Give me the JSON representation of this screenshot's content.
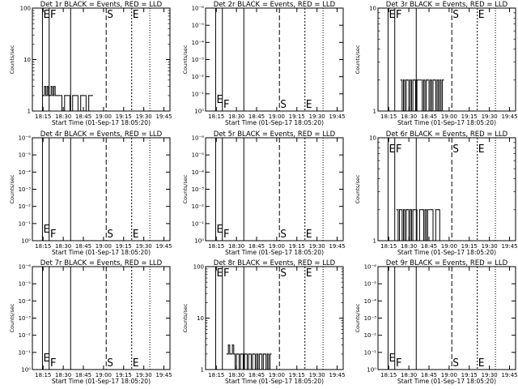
{
  "chart_data": [
    {
      "title": "Det 1r BLACK = Events, RED = LLD",
      "type": "line",
      "ylabel": "Counts/sec",
      "xlabel": "Start Time (01-Sep-17 18:05:20)",
      "x_ticks": [
        "18:15",
        "18:30",
        "18:45",
        "19:00",
        "19:15",
        "19:30",
        "19:45"
      ],
      "y_scale": "log",
      "y_ticks": [
        "1",
        "10",
        "100"
      ],
      "ylim": [
        1,
        100
      ],
      "markers": [
        "E",
        "F",
        "S",
        "E"
      ],
      "series": [
        {
          "color": "#000000",
          "x": [
            "18:15:00",
            "18:16:00",
            "18:17:00",
            "18:18:00",
            "18:19:00",
            "18:20:00",
            "18:21:00",
            "18:22:00",
            "18:23:00",
            "18:24:00",
            "18:25:00",
            "18:27:00",
            "18:29:00",
            "18:31:00",
            "18:33:00",
            "18:35:00",
            "18:37:00",
            "18:39:00",
            "18:41:00",
            "18:43:00",
            "18:45:00",
            "18:47:00",
            "18:49:00",
            "18:51:00"
          ],
          "values": [
            2,
            3,
            2,
            3,
            2,
            2,
            3,
            2,
            3,
            2,
            2,
            2,
            1,
            2,
            2,
            1,
            2,
            2,
            1,
            2,
            2,
            1,
            2,
            2
          ]
        }
      ]
    },
    {
      "title": "Det 2r BLACK = Events, RED = LLD",
      "type": "line",
      "ylabel": "Counts/sec",
      "xlabel": "Start Time (01-Sep-17 18:05:20)",
      "x_ticks": [
        "18:15",
        "18:30",
        "18:45",
        "19:00",
        "19:15",
        "19:30",
        "19:45"
      ],
      "y_scale": "log",
      "y_ticks": [
        "10⁰",
        "10⁻¹",
        "10⁻²",
        "10⁻³",
        "10⁻⁴",
        "10⁻⁵",
        "10⁻⁶"
      ],
      "markers": [
        "E",
        "F",
        "S",
        "E"
      ],
      "series": []
    },
    {
      "title": "Det 3r BLACK = Events, RED = LLD",
      "type": "line",
      "ylabel": "Counts/sec",
      "xlabel": "Start Time (01-Sep-17 18:05:20)",
      "x_ticks": [
        "18:15",
        "18:30",
        "18:45",
        "19:00",
        "19:15",
        "19:30",
        "19:45"
      ],
      "y_scale": "log",
      "y_ticks": [
        "1",
        "10"
      ],
      "ylim": [
        1,
        10
      ],
      "markers": [
        "E",
        "F",
        "S",
        "E"
      ],
      "series": [
        {
          "color": "#000000",
          "x": [
            "18:24:00",
            "18:25:00",
            "18:26:00",
            "18:27:00",
            "18:28:00",
            "18:29:00",
            "18:30:00",
            "18:31:00",
            "18:32:00",
            "18:33:00",
            "18:34:00",
            "18:35:00",
            "18:36:00",
            "18:40:00",
            "18:41:00",
            "18:42:00",
            "18:43:00",
            "18:44:00",
            "18:45:00",
            "18:46:00",
            "18:47:00",
            "18:48:00",
            "18:49:00",
            "18:50:00",
            "18:51:00",
            "18:52:00",
            "18:53:00",
            "18:54:00",
            "18:55:00"
          ],
          "values": [
            2,
            1,
            2,
            1,
            2,
            2,
            1,
            2,
            1,
            2,
            2,
            1,
            2,
            1,
            2,
            1,
            2,
            2,
            1,
            2,
            1,
            2,
            2,
            1,
            2,
            1,
            2,
            1,
            2
          ]
        }
      ]
    },
    {
      "title": "Det 4r BLACK = Events, RED = LLD",
      "type": "line",
      "ylabel": "Counts/sec",
      "xlabel": "Start Time (01-Sep-17 18:05:20)",
      "x_ticks": [
        "18:15",
        "18:30",
        "18:45",
        "19:00",
        "19:15",
        "19:30",
        "19:45"
      ],
      "y_scale": "log",
      "y_ticks": [
        "10⁰",
        "10⁻¹",
        "10⁻²",
        "10⁻³",
        "10⁻⁴",
        "10⁻⁵",
        "10⁻⁶"
      ],
      "markers": [
        "E",
        "F",
        "S",
        "E"
      ],
      "series": []
    },
    {
      "title": "Det 5r BLACK = Events, RED = LLD",
      "type": "line",
      "ylabel": "Counts/sec",
      "xlabel": "Start Time (01-Sep-17 18:05:20)",
      "x_ticks": [
        "18:15",
        "18:30",
        "18:45",
        "19:00",
        "19:15",
        "19:30",
        "19:45"
      ],
      "y_scale": "log",
      "y_ticks": [
        "10⁰",
        "10⁻¹",
        "10⁻²",
        "10⁻³",
        "10⁻⁴",
        "10⁻⁵",
        "10⁻⁶"
      ],
      "markers": [
        "E",
        "F",
        "S",
        "E"
      ],
      "series": []
    },
    {
      "title": "Det 6r BLACK = Events, RED = LLD",
      "type": "line",
      "ylabel": "Counts/sec",
      "xlabel": "Start Time (01-Sep-17 18:05:20)",
      "x_ticks": [
        "18:15",
        "18:30",
        "18:45",
        "19:00",
        "19:15",
        "19:30",
        "19:45"
      ],
      "y_scale": "log",
      "y_ticks": [
        "1",
        "10"
      ],
      "ylim": [
        1,
        10
      ],
      "markers": [
        "E",
        "F",
        "S",
        "E"
      ],
      "series": [
        {
          "color": "#000000",
          "x": [
            "18:21:00",
            "18:22:00",
            "18:23:00",
            "18:24:00",
            "18:25:00",
            "18:26:00",
            "18:27:00",
            "18:28:00",
            "18:29:00",
            "18:30:00",
            "18:31:00",
            "18:32:00",
            "18:33:00",
            "18:34:00",
            "18:36:00",
            "18:38:00",
            "18:40:00",
            "18:41:00",
            "18:42:00",
            "18:43:00",
            "18:44:00",
            "18:47:00",
            "18:48:00",
            "18:50:00",
            "18:52:00",
            "18:53:00"
          ],
          "values": [
            2,
            1,
            2,
            2,
            1,
            2,
            1,
            2,
            2,
            1,
            2,
            1,
            2,
            2,
            1,
            2,
            2,
            1,
            2,
            1,
            2,
            2,
            1,
            2,
            2,
            1
          ]
        }
      ]
    },
    {
      "title": "Det 7r BLACK = Events, RED = LLD",
      "type": "line",
      "ylabel": "Counts/sec",
      "xlabel": "Start Time (01-Sep-17 18:05:20)",
      "x_ticks": [
        "18:15",
        "18:30",
        "18:45",
        "19:00",
        "19:15",
        "19:30",
        "19:45"
      ],
      "y_scale": "log",
      "y_ticks": [
        "10⁰",
        "10⁻¹",
        "10⁻²",
        "10⁻³",
        "10⁻⁴",
        "10⁻⁵",
        "10⁻⁶"
      ],
      "markers": [
        "E",
        "F",
        "S",
        "E"
      ],
      "series": []
    },
    {
      "title": "Det 8r BLACK = Events, RED = LLD",
      "type": "line",
      "ylabel": "Counts/sec",
      "xlabel": "Start Time (01-Sep-17 18:05:20)",
      "x_ticks": [
        "18:15",
        "18:30",
        "18:45",
        "19:00",
        "19:15",
        "19:30",
        "19:45"
      ],
      "y_scale": "log",
      "y_ticks": [
        "1",
        "10",
        "100"
      ],
      "ylim": [
        1,
        100
      ],
      "markers": [
        "E",
        "F",
        "S",
        "E"
      ],
      "series": [
        {
          "color": "#000000",
          "x": [
            "18:23:00",
            "18:24:00",
            "18:25:00",
            "18:26:00",
            "18:27:00",
            "18:28:00",
            "18:29:00",
            "18:30:00",
            "18:31:00",
            "18:32:00",
            "18:33:00",
            "18:34:00",
            "18:35:00",
            "18:36:00",
            "18:37:00",
            "18:38:00",
            "18:39:00",
            "18:40:00",
            "18:41:00",
            "18:42:00",
            "18:43:00",
            "18:44:00",
            "18:45:00",
            "18:46:00",
            "18:47:00",
            "18:48:00",
            "18:49:00",
            "18:50:00",
            "18:51:00",
            "18:52:00",
            "18:53:00",
            "18:54:00",
            "18:55:00"
          ],
          "values": [
            2,
            3,
            2,
            2,
            3,
            2,
            1,
            2,
            2,
            1,
            2,
            2,
            1,
            2,
            2,
            1,
            2,
            2,
            1,
            2,
            2,
            1,
            2,
            1,
            2,
            2,
            1,
            2,
            2,
            1,
            2,
            1,
            2
          ]
        }
      ]
    },
    {
      "title": "Det 9r BLACK = Events, RED = LLD",
      "type": "line",
      "ylabel": "Counts/sec",
      "xlabel": "Start Time (01-Sep-17 18:05:20)",
      "x_ticks": [
        "18:15",
        "18:30",
        "18:45",
        "19:00",
        "19:15",
        "19:30",
        "19:45"
      ],
      "y_scale": "log",
      "y_ticks": [
        "10⁰",
        "10⁻¹",
        "10⁻²",
        "10⁻³",
        "10⁻⁴",
        "10⁻⁵",
        "10⁻⁶"
      ],
      "markers": [
        "E",
        "F",
        "S",
        "E"
      ],
      "series": []
    }
  ]
}
